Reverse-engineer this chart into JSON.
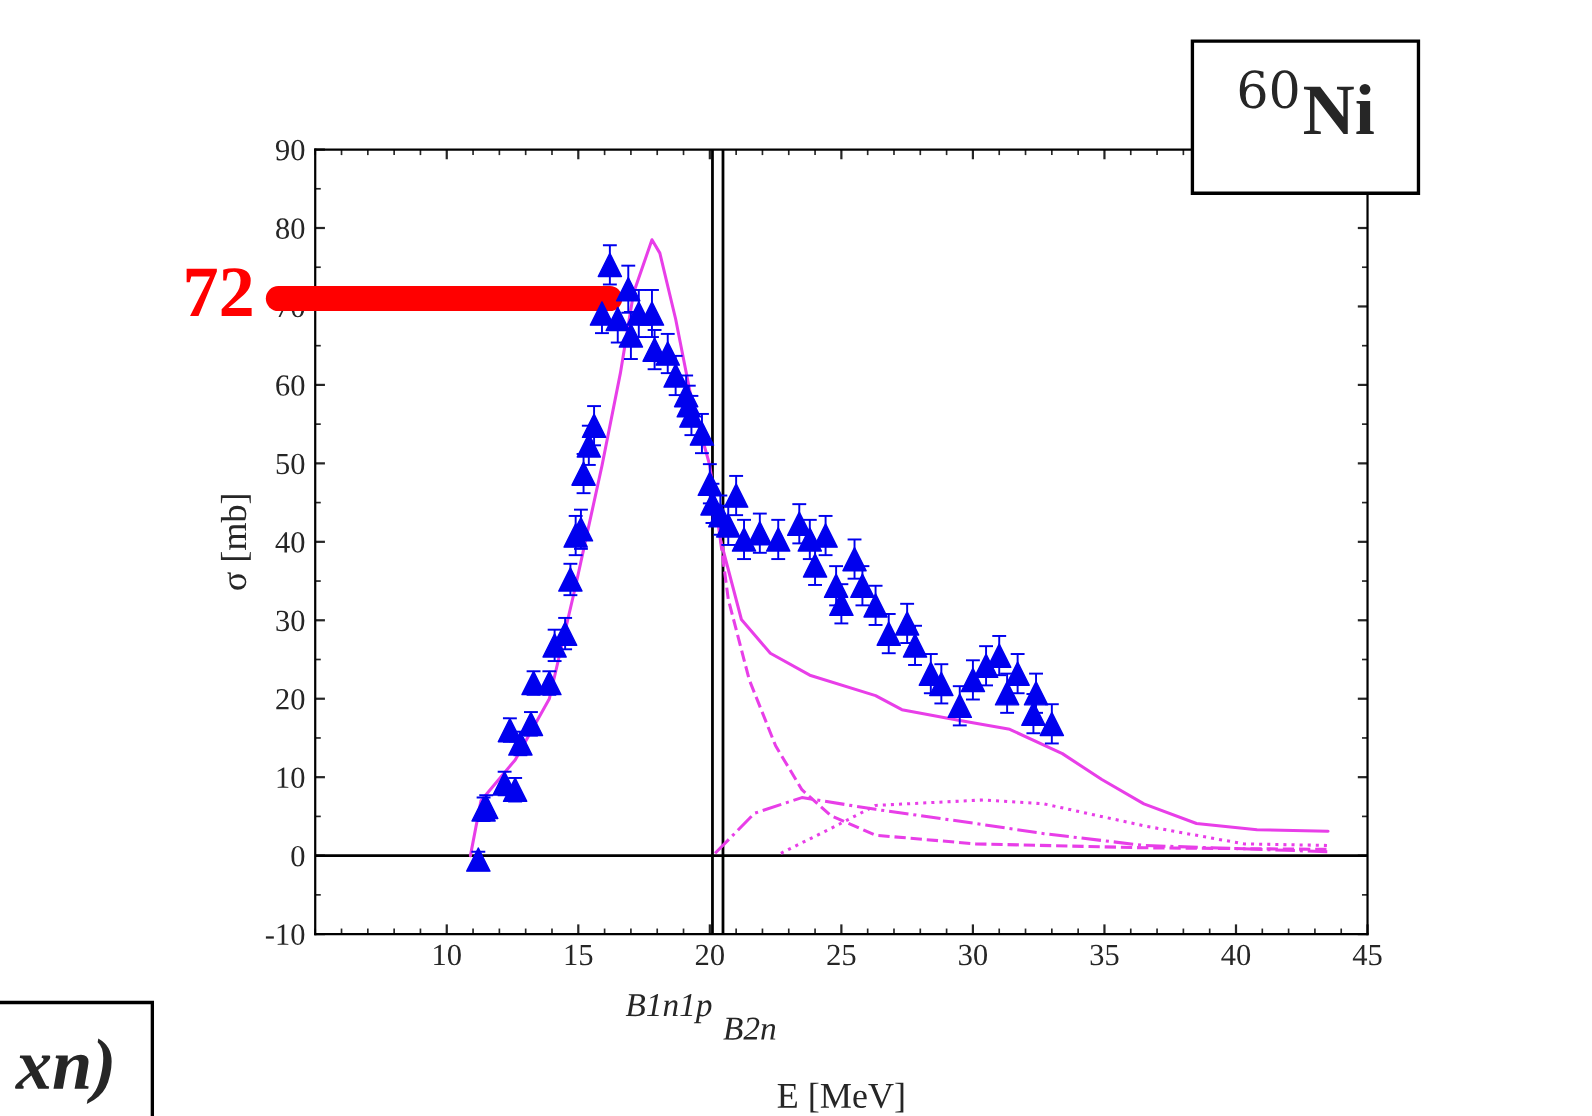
{
  "chart_data": {
    "type": "scatter",
    "xlabel": "E [MeV]",
    "ylabel": "σ [mb]",
    "xlim": [
      5,
      45
    ],
    "ylim": [
      -10,
      90
    ],
    "xticks": [
      10,
      15,
      20,
      25,
      30,
      35,
      40,
      45
    ],
    "yticks": [
      -10,
      0,
      10,
      20,
      30,
      40,
      50,
      60,
      70,
      80,
      90
    ],
    "grid": false,
    "legend": false,
    "series": [
      {
        "type": "scatter",
        "color": "#0000ee",
        "marker": "triangle",
        "x": [
          11.2,
          11.4,
          11.5,
          12.2,
          12.4,
          12.6,
          12.8,
          13.2,
          13.3,
          13.9,
          14.1,
          14.5,
          14.7,
          14.9,
          15.1,
          15.2,
          15.4,
          15.6,
          15.9,
          16.2,
          16.5,
          16.9,
          17.0,
          17.3,
          17.8,
          17.9,
          18.4,
          18.7,
          19.1,
          19.2,
          19.3,
          19.7,
          20.0,
          20.1,
          20.4,
          20.7,
          21.0,
          21.3,
          21.9,
          22.6,
          23.4,
          23.8,
          24.0,
          24.4,
          24.8,
          25.0,
          25.5,
          25.8,
          26.3,
          26.8,
          27.5,
          27.8,
          28.4,
          28.8,
          29.5,
          30.0,
          30.5,
          31.0,
          31.3,
          31.7,
          32.3,
          32.4,
          33.0
        ],
        "values": [
          -0.5,
          5.9,
          6.2,
          9.2,
          16,
          8.4,
          14.3,
          16.8,
          22,
          22,
          26.8,
          28.3,
          35.2,
          40.8,
          41.6,
          48.7,
          52.3,
          54.8,
          69.1,
          75.3,
          68.4,
          72.2,
          66.3,
          69.1,
          69.1,
          64.5,
          64,
          61.2,
          58.7,
          57.4,
          56.1,
          53.8,
          47.4,
          44.9,
          43.4,
          42.1,
          45.9,
          40.3,
          41.1,
          40.3,
          42.3,
          40.3,
          37,
          40.8,
          34.4,
          32.1,
          37.8,
          34.4,
          31.9,
          28.3,
          29.6,
          26.8,
          23.2,
          21.9,
          19.1,
          22.4,
          24.2,
          25.5,
          20.7,
          23.2,
          18.1,
          20.7,
          16.8
        ],
        "errors": [
          1,
          1.5,
          1.5,
          1.5,
          1.5,
          1.5,
          1.5,
          1.5,
          1.5,
          1.5,
          2,
          2,
          2,
          2.5,
          2.5,
          2.5,
          2.5,
          2.5,
          2.5,
          2.5,
          3,
          3,
          3,
          3,
          3,
          2.5,
          2.5,
          2.5,
          2.5,
          2.5,
          2.5,
          2.5,
          2.5,
          2.5,
          2.5,
          2.5,
          2.5,
          2.5,
          2.5,
          2.5,
          2.5,
          2.5,
          2.5,
          2.5,
          2.5,
          2.5,
          2.5,
          2.5,
          2.5,
          2.5,
          2.5,
          2.5,
          2.5,
          2.5,
          2.5,
          2.5,
          2.5,
          2.5,
          2.5,
          2.5,
          2.5,
          2.5,
          2.5
        ]
      },
      {
        "type": "line",
        "color": "#e83ee8",
        "line_style": "solid",
        "marker": "none",
        "x": [
          10.9,
          11.3,
          12.6,
          13.9,
          14.9,
          15.9,
          16.6,
          17.1,
          17.8,
          18.1,
          18.7,
          19.3,
          20.0,
          20.4,
          21.2,
          22.3,
          23.8,
          26.3,
          27.3,
          29.4,
          31.4,
          33.4,
          34.9,
          36.5,
          38.5,
          40.8,
          43.5
        ],
        "values": [
          0,
          7,
          12.2,
          20,
          34.4,
          49.7,
          61.5,
          71.7,
          78.5,
          76.8,
          68.4,
          58.2,
          49.7,
          40.3,
          30.1,
          25.8,
          23,
          20.4,
          18.6,
          17.3,
          16.1,
          13,
          9.7,
          6.6,
          4.1,
          3.3,
          3.1
        ]
      },
      {
        "type": "line",
        "color": "#e83ee8",
        "line_style": "dashed",
        "marker": "none",
        "x": [
          20.4,
          20.7,
          21.5,
          22.5,
          23.5,
          24.6,
          26.3,
          30.1,
          36.5,
          43.5
        ],
        "values": [
          40.3,
          32.7,
          22.4,
          14,
          8.4,
          5.1,
          2.6,
          1.5,
          1,
          0.8
        ]
      },
      {
        "type": "line",
        "color": "#e83ee8",
        "line_style": "dashdot",
        "marker": "none",
        "x": [
          20.2,
          21.7,
          23.5,
          26.3,
          30.1,
          32.7,
          36.5,
          43.5
        ],
        "values": [
          0.3,
          5.4,
          7.4,
          5.9,
          4.1,
          2.8,
          1.3,
          0.5
        ]
      },
      {
        "type": "line",
        "color": "#e83ee8",
        "line_style": "dotted",
        "marker": "none",
        "x": [
          22.7,
          24.8,
          26.3,
          30.4,
          32.7,
          36.5,
          40.3,
          43.5
        ],
        "values": [
          0.3,
          3.8,
          6.4,
          7.1,
          6.6,
          3.8,
          1.5,
          1.3
        ]
      }
    ],
    "ref_lines": [
      {
        "axis": "x",
        "value": 20.1,
        "label": "B1n1p",
        "color": "#000000"
      },
      {
        "axis": "x",
        "value": 20.5,
        "label": "B2n",
        "color": "#000000"
      },
      {
        "axis": "y",
        "value": 0,
        "color": "#000000"
      }
    ],
    "annotations": [
      {
        "text": "72",
        "x": 16.2,
        "y": 71
      },
      "$^{60}$Ni",
      "xn)"
    ]
  }
}
